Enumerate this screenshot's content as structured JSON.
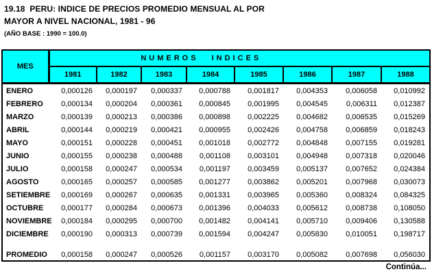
{
  "title": {
    "line1": "19.18  PERU: INDICE DE PRECIOS PROMEDIO MENSUAL AL POR",
    "line2": "MAYOR A NIVEL NACIONAL, 1981 - 96",
    "base_note": "(AÑO BASE : 1990 = 100.0)"
  },
  "table": {
    "corner_header": "MES",
    "group_header": "NUMEROS INDICES",
    "years": [
      "1981",
      "1982",
      "1983",
      "1984",
      "1985",
      "1986",
      "1987",
      "1988"
    ],
    "rows": [
      {
        "mes": "ENERO",
        "values": [
          "0,000126",
          "0,000197",
          "0,000337",
          "0,000788",
          "0,001817",
          "0,004353",
          "0,006058",
          "0,010992"
        ]
      },
      {
        "mes": "FEBRERO",
        "values": [
          "0,000134",
          "0,000204",
          "0,000361",
          "0,000845",
          "0,001995",
          "0,004545",
          "0,006311",
          "0,012387"
        ]
      },
      {
        "mes": "MARZO",
        "values": [
          "0,000139",
          "0,000213",
          "0,000386",
          "0,000898",
          "0,002225",
          "0,004682",
          "0,006535",
          "0,015269"
        ]
      },
      {
        "mes": "ABRIL",
        "values": [
          "0,000144",
          "0,000219",
          "0,000421",
          "0,000955",
          "0,002426",
          "0,004758",
          "0,006859",
          "0,018243"
        ]
      },
      {
        "mes": "MAYO",
        "values": [
          "0,000151",
          "0,000228",
          "0,000451",
          "0,001018",
          "0,002772",
          "0,004848",
          "0,007155",
          "0,019281"
        ]
      },
      {
        "mes": "JUNIO",
        "values": [
          "0,000155",
          "0,000238",
          "0,000488",
          "0,001108",
          "0,003101",
          "0,004948",
          "0,007318",
          "0,020046"
        ]
      },
      {
        "mes": "JULIO",
        "values": [
          "0,000158",
          "0,000247",
          "0,000534",
          "0,001197",
          "0,003459",
          "0,005137",
          "0,007652",
          "0,024384"
        ]
      },
      {
        "mes": "AGOSTO",
        "values": [
          "0,000165",
          "0,000257",
          "0,000585",
          "0,001277",
          "0,003862",
          "0,005201",
          "0,007968",
          "0,030073"
        ]
      },
      {
        "mes": "SETIEMBRE",
        "values": [
          "0,000169",
          "0,000267",
          "0,000635",
          "0,001331",
          "0,003965",
          "0,005360",
          "0,008324",
          "0,084325"
        ]
      },
      {
        "mes": "OCTUBRE",
        "values": [
          "0,000177",
          "0,000284",
          "0,000673",
          "0,001396",
          "0,004033",
          "0,005612",
          "0,008738",
          "0,108050"
        ]
      },
      {
        "mes": "NOVIEMBRE",
        "values": [
          "0,000184",
          "0,000295",
          "0,000700",
          "0,001482",
          "0,004141",
          "0,005710",
          "0,009406",
          "0,130588"
        ]
      },
      {
        "mes": "DICIEMBRE",
        "values": [
          "0,000190",
          "0,000313",
          "0,000739",
          "0,001594",
          "0,004247",
          "0,005830",
          "0,010051",
          "0,198717"
        ]
      }
    ],
    "promedio": {
      "mes": "PROMEDIO",
      "values": [
        "0,000158",
        "0,000247",
        "0,000526",
        "0,001157",
        "0,003170",
        "0,005082",
        "0,007698",
        "0,056030"
      ]
    }
  },
  "footer": {
    "continua": "Continúa..."
  },
  "colors": {
    "header_bg": "#00FFFF",
    "border": "#000000",
    "text": "#000000",
    "page_bg": "#FFFFFF"
  }
}
